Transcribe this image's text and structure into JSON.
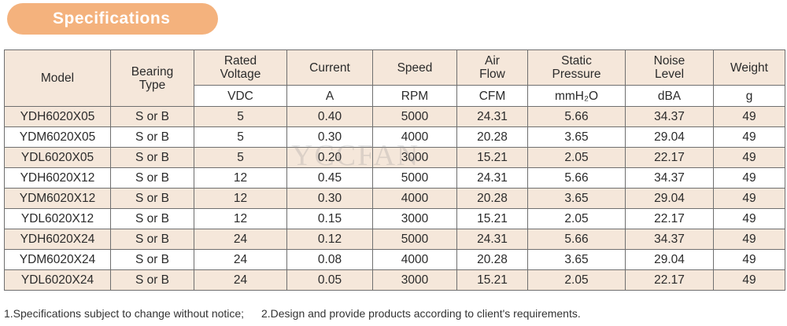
{
  "title": "Specifications",
  "headers": {
    "model": "Model",
    "bearing": "Bearing Type",
    "voltage": "Rated Voltage",
    "current": "Current",
    "speed": "Speed",
    "airflow": "Air Flow",
    "pressure": "Static Pressure",
    "noise": "Noise Level",
    "weight": "Weight"
  },
  "units": {
    "voltage": "VDC",
    "current": "A",
    "speed": "RPM",
    "airflow": "CFM",
    "pressure": "mmH₂O",
    "noise": "dBA",
    "weight": "g"
  },
  "rows": [
    [
      "YDH6020X05",
      "S or B",
      "5",
      "0.40",
      "5000",
      "24.31",
      "5.66",
      "34.37",
      "49"
    ],
    [
      "YDM6020X05",
      "S or B",
      "5",
      "0.30",
      "4000",
      "20.28",
      "3.65",
      "29.04",
      "49"
    ],
    [
      "YDL6020X05",
      "S or B",
      "5",
      "0.20",
      "3000",
      "15.21",
      "2.05",
      "22.17",
      "49"
    ],
    [
      "YDH6020X12",
      "S or B",
      "12",
      "0.45",
      "5000",
      "24.31",
      "5.66",
      "34.37",
      "49"
    ],
    [
      "YDM6020X12",
      "S or B",
      "12",
      "0.30",
      "4000",
      "20.28",
      "3.65",
      "29.04",
      "49"
    ],
    [
      "YDL6020X12",
      "S or B",
      "12",
      "0.15",
      "3000",
      "15.21",
      "2.05",
      "22.17",
      "49"
    ],
    [
      "YDH6020X24",
      "S or B",
      "24",
      "0.12",
      "5000",
      "24.31",
      "5.66",
      "34.37",
      "49"
    ],
    [
      "YDM6020X24",
      "S or B",
      "24",
      "0.08",
      "4000",
      "20.28",
      "3.65",
      "29.04",
      "49"
    ],
    [
      "YDL6020X24",
      "S or B",
      "24",
      "0.05",
      "3000",
      "15.21",
      "2.05",
      "22.17",
      "49"
    ]
  ],
  "watermark": "YCCFAN",
  "footnotes": {
    "note1": "1.Specifications subject to change without notice;",
    "note2": "2.Design and provide products according to client's requirements."
  },
  "colors": {
    "badge": "#f4b27d",
    "header_fill": "#f5e7da",
    "alt_row_fill": "#f5e7da"
  }
}
